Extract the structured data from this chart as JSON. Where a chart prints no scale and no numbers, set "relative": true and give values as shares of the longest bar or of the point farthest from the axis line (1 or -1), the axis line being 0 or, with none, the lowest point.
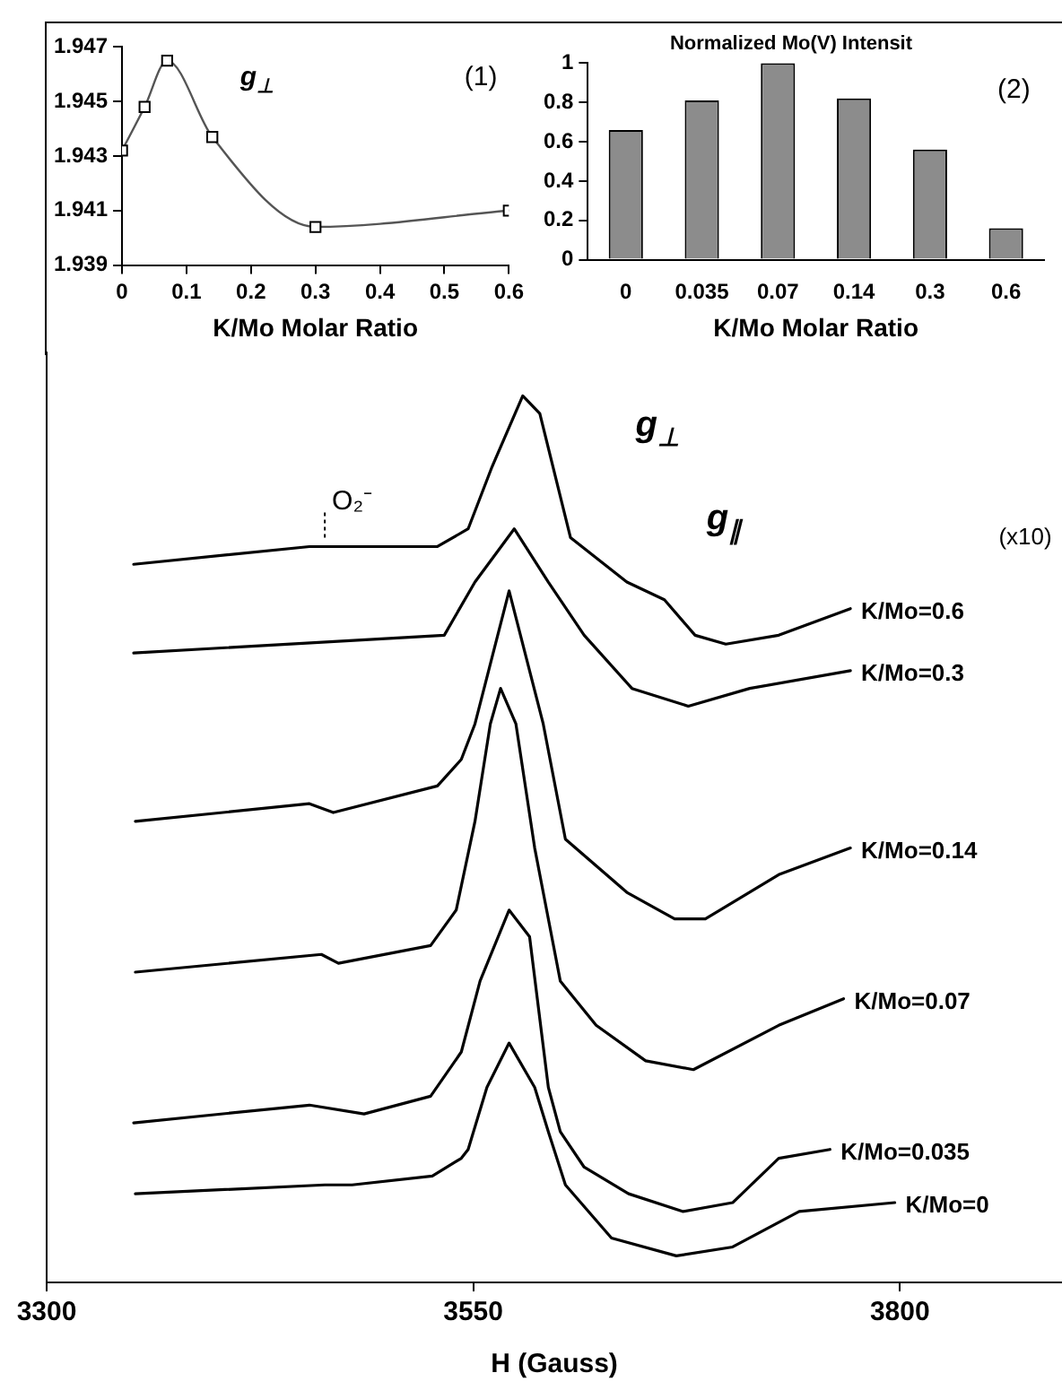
{
  "chart_data": [
    {
      "type": "line",
      "xlabel": "K/Mo Molar Ratio",
      "x": [
        0,
        0.035,
        0.07,
        0.14,
        0.3,
        0.6
      ],
      "values": [
        1.9432,
        1.9448,
        1.9465,
        1.9437,
        1.9404,
        1.941
      ],
      "color": "#555555",
      "marker": "square",
      "xlim": [
        0,
        0.6
      ],
      "xticks": [
        0,
        0.1,
        0.2,
        0.3,
        0.4,
        0.5,
        0.6
      ],
      "ylim": [
        1.939,
        1.947
      ],
      "yticks": [
        1.939,
        1.941,
        1.943,
        1.945,
        1.947
      ],
      "grid": false,
      "legend": false,
      "annotations": [
        "g$_{⊥}$",
        "(1)"
      ]
    },
    {
      "type": "bar",
      "title": "Normalized Mo(V) Intensit",
      "xlabel": "K/Mo Molar Ratio",
      "categories": [
        "0",
        "0.035",
        "0.07",
        "0.14",
        "0.3",
        "0.6"
      ],
      "values": [
        0.66,
        0.81,
        1.0,
        0.82,
        0.56,
        0.16
      ],
      "color": "#8c8c8c",
      "ylim": [
        0,
        1
      ],
      "yticks": [
        0,
        0.2,
        0.4,
        0.6,
        0.8,
        1
      ],
      "grid": false,
      "legend": false,
      "annotations": [
        "(2)"
      ]
    },
    {
      "type": "line",
      "xlabel": "H (Gauss)",
      "relative": true,
      "tick_labels": "x",
      "xlim": [
        3300,
        3895
      ],
      "xticks": [
        3300,
        3550,
        3800
      ],
      "grid": false,
      "legend": false,
      "series": [
        {
          "name": "K/Mo=0.6",
          "color": "#000000",
          "x": [
            3351,
            3454,
            3529,
            3547,
            3561,
            3579,
            3589,
            3607,
            3640,
            3662,
            3680,
            3698,
            3729,
            3771
          ],
          "values": [
            0.81,
            0.83,
            0.83,
            0.85,
            0.92,
            1,
            0.98,
            0.84,
            0.79,
            0.77,
            0.73,
            0.72,
            0.73,
            0.76
          ]
        },
        {
          "name": "K/Mo=0.3",
          "color": "#000000",
          "x": [
            3351,
            3533,
            3551,
            3574,
            3594,
            3615,
            3643,
            3676,
            3712,
            3771
          ],
          "values": [
            0.71,
            0.73,
            0.79,
            0.85,
            0.79,
            0.73,
            0.67,
            0.65,
            0.67,
            0.69
          ]
        },
        {
          "name": "K/Mo=0.14",
          "color": "#000000",
          "x": [
            3352,
            3454,
            3468,
            3529,
            3543,
            3551,
            3571,
            3591,
            3604,
            3640,
            3668,
            3686,
            3729,
            3771
          ],
          "values": [
            0.52,
            0.54,
            0.53,
            0.56,
            0.59,
            0.63,
            0.78,
            0.63,
            0.5,
            0.44,
            0.41,
            0.41,
            0.46,
            0.49
          ]
        },
        {
          "name": "K/Mo=0.07",
          "color": "#000000",
          "x": [
            3352,
            3461,
            3471,
            3525,
            3540,
            3551,
            3560,
            3566,
            3575,
            3586,
            3601,
            3622,
            3651,
            3679,
            3729,
            3767
          ],
          "values": [
            0.35,
            0.37,
            0.36,
            0.38,
            0.42,
            0.52,
            0.63,
            0.67,
            0.63,
            0.49,
            0.34,
            0.29,
            0.25,
            0.24,
            0.29,
            0.32
          ]
        },
        {
          "name": "K/Mo=0.035",
          "color": "#000000",
          "x": [
            3351,
            3454,
            3486,
            3525,
            3543,
            3554,
            3571,
            3583,
            3594,
            3601,
            3615,
            3641,
            3673,
            3702,
            3729,
            3759
          ],
          "values": [
            0.18,
            0.2,
            0.19,
            0.21,
            0.26,
            0.34,
            0.42,
            0.39,
            0.22,
            0.17,
            0.13,
            0.1,
            0.08,
            0.09,
            0.14,
            0.15
          ]
        },
        {
          "name": "K/Mo=0",
          "color": "#000000",
          "x": [
            3352,
            3463,
            3479,
            3526,
            3543,
            3547,
            3558,
            3571,
            3586,
            3594,
            3604,
            3631,
            3669,
            3702,
            3741,
            3797
          ],
          "values": [
            0.1,
            0.11,
            0.11,
            0.12,
            0.14,
            0.15,
            0.22,
            0.27,
            0.22,
            0.17,
            0.11,
            0.05,
            0.03,
            0.04,
            0.08,
            0.09
          ]
        }
      ],
      "annotations": [
        {
          "text": "O₂⁻",
          "x": 3463,
          "y": 0.84
        },
        "g$_{⊥}$",
        "g$_{∥}$",
        "(x10)"
      ]
    }
  ]
}
